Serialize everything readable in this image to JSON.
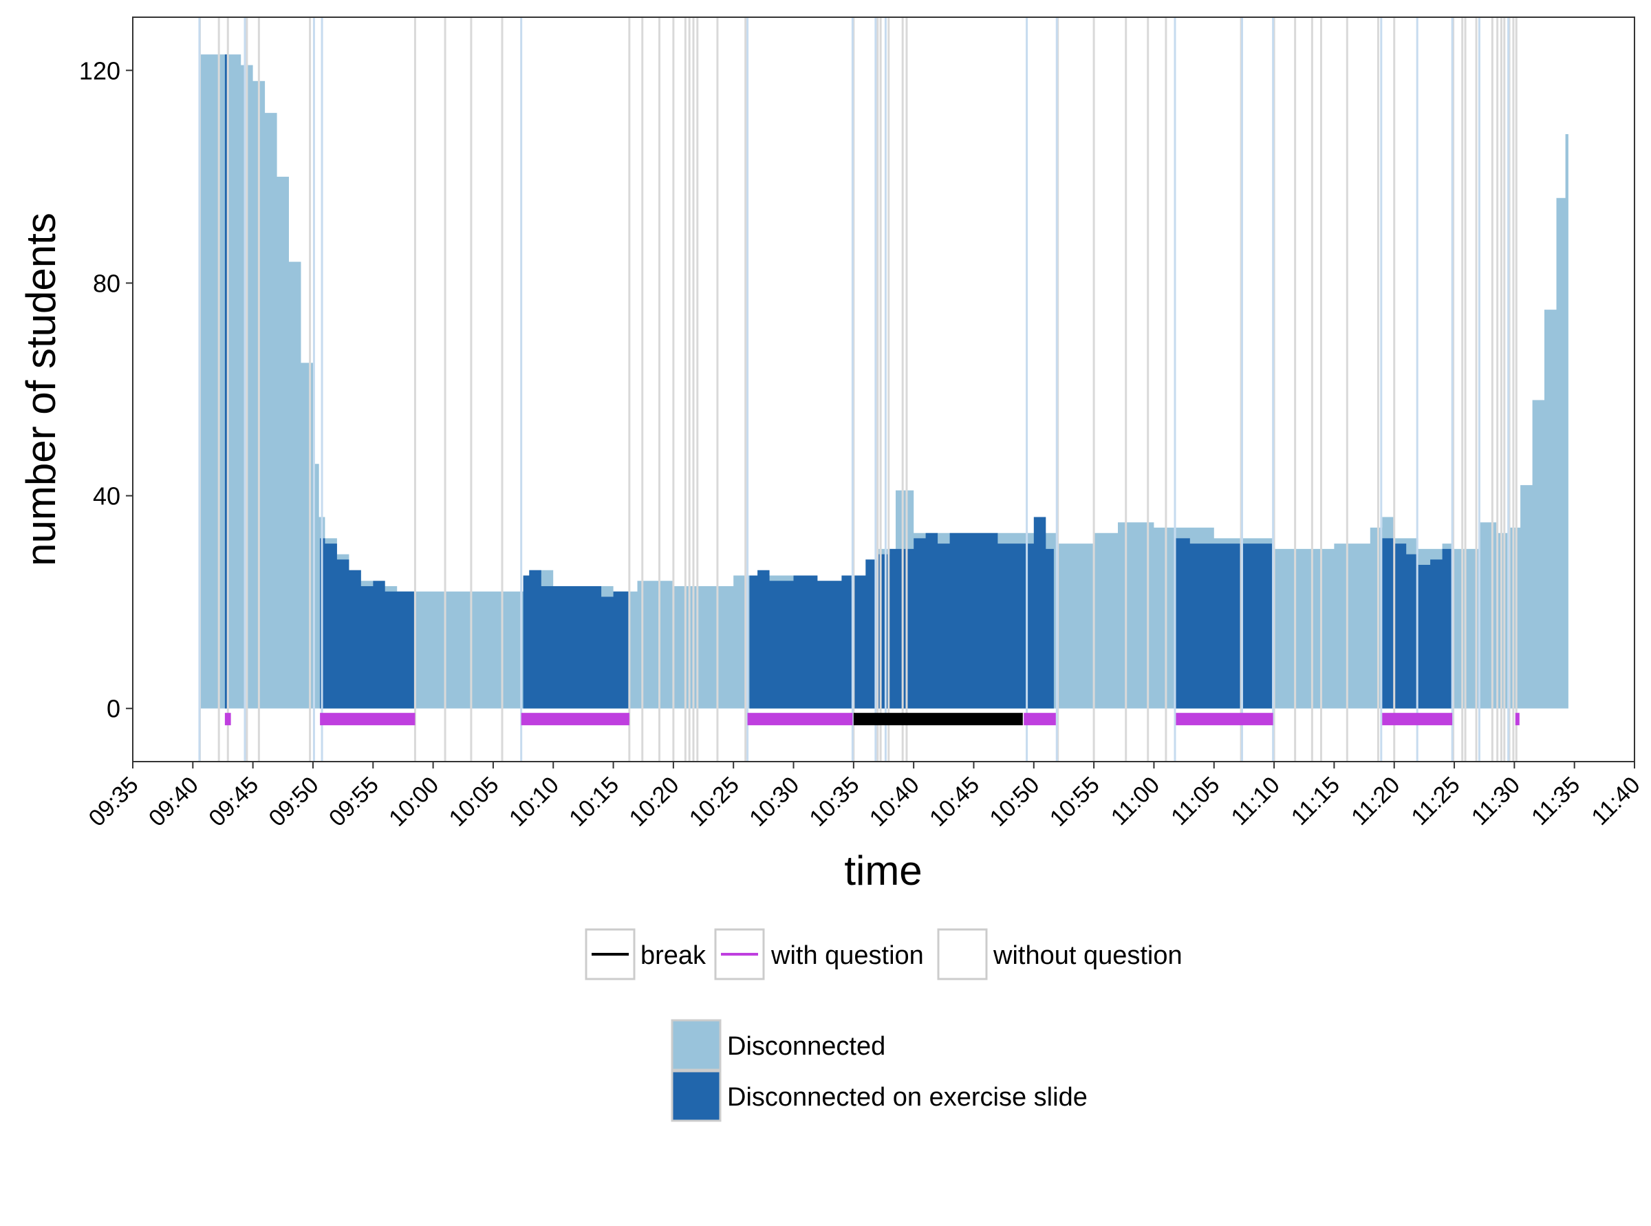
{
  "chart_data": {
    "type": "area",
    "xlabel": "time",
    "ylabel": "number of students",
    "ylim": [
      -10,
      130
    ],
    "y_ticks": [
      "0",
      "40",
      "80",
      "120"
    ],
    "y_tick_values": [
      0,
      40,
      80,
      120
    ],
    "x_range": [
      "09:35",
      "11:40"
    ],
    "x_ticks": [
      "09:35",
      "09:40",
      "09:45",
      "09:50",
      "09:55",
      "10:00",
      "10:05",
      "10:10",
      "10:15",
      "10:20",
      "10:25",
      "10:30",
      "10:35",
      "10:40",
      "10:45",
      "10:50",
      "10:55",
      "11:00",
      "11:05",
      "11:10",
      "11:15",
      "11:20",
      "11:25",
      "11:30",
      "11:35",
      "11:40"
    ],
    "grid": false,
    "series": [
      {
        "name": "Disconnected",
        "color": "#99C3DB",
        "points": [
          [
            "09:40:30",
            123
          ],
          [
            "09:43:00",
            123
          ],
          [
            "09:44:00",
            121
          ],
          [
            "09:45:00",
            118
          ],
          [
            "09:46:00",
            112
          ],
          [
            "09:47:00",
            100
          ],
          [
            "09:48:00",
            84
          ],
          [
            "09:49:00",
            65
          ],
          [
            "09:50:00",
            46
          ],
          [
            "09:50:30",
            36
          ],
          [
            "09:51:00",
            32
          ],
          [
            "09:52:00",
            29
          ],
          [
            "09:53:00",
            26
          ],
          [
            "09:54:00",
            24
          ],
          [
            "09:55:00",
            23
          ],
          [
            "09:57:00",
            22
          ],
          [
            "09:58:00",
            22
          ],
          [
            "10:00:00",
            22
          ],
          [
            "10:05:00",
            22
          ],
          [
            "10:08:00",
            26
          ],
          [
            "10:10:00",
            23
          ],
          [
            "10:15:00",
            22
          ],
          [
            "10:17:00",
            24
          ],
          [
            "10:20:00",
            23
          ],
          [
            "10:25:00",
            25
          ],
          [
            "10:30:00",
            24
          ],
          [
            "10:35:00",
            25
          ],
          [
            "10:37:00",
            30
          ],
          [
            "10:38:30",
            41
          ],
          [
            "10:40:00",
            33
          ],
          [
            "10:45:00",
            33
          ],
          [
            "10:50:00",
            33
          ],
          [
            "10:52:00",
            31
          ],
          [
            "10:55:00",
            33
          ],
          [
            "10:57:00",
            35
          ],
          [
            "11:00:00",
            34
          ],
          [
            "11:05:00",
            32
          ],
          [
            "11:10:00",
            30
          ],
          [
            "11:15:00",
            31
          ],
          [
            "11:18:00",
            34
          ],
          [
            "11:19:00",
            36
          ],
          [
            "11:20:00",
            32
          ],
          [
            "11:22:00",
            30
          ],
          [
            "11:24:00",
            31
          ],
          [
            "11:25:00",
            30
          ],
          [
            "11:27:00",
            35
          ],
          [
            "11:28:30",
            33
          ],
          [
            "11:29:30",
            34
          ],
          [
            "11:30:30",
            42
          ],
          [
            "11:31:30",
            58
          ],
          [
            "11:32:30",
            75
          ],
          [
            "11:33:30",
            96
          ],
          [
            "11:34:15",
            108
          ],
          [
            "11:34:30",
            108
          ]
        ]
      },
      {
        "name": "Disconnected on exercise slide",
        "color": "#2166AC",
        "segments": [
          {
            "start": "09:42:40",
            "end": "09:42:55",
            "points": [
              [
                "09:42:40",
                123
              ],
              [
                "09:42:55",
                123
              ]
            ]
          },
          {
            "start": "09:50:35",
            "end": "09:58:30",
            "points": [
              [
                "09:50:35",
                32
              ],
              [
                "09:51:00",
                31
              ],
              [
                "09:52:00",
                28
              ],
              [
                "09:53:00",
                26
              ],
              [
                "09:54:00",
                23
              ],
              [
                "09:55:00",
                24
              ],
              [
                "09:56:00",
                22
              ],
              [
                "09:57:00",
                22
              ],
              [
                "09:58:30",
                22
              ]
            ]
          },
          {
            "start": "10:07:30",
            "end": "10:16:20",
            "points": [
              [
                "10:07:30",
                25
              ],
              [
                "10:08:00",
                26
              ],
              [
                "10:09:00",
                23
              ],
              [
                "10:10:00",
                23
              ],
              [
                "10:12:00",
                23
              ],
              [
                "10:14:00",
                21
              ],
              [
                "10:15:00",
                22
              ],
              [
                "10:16:20",
                23
              ]
            ]
          },
          {
            "start": "10:26:20",
            "end": "10:34:50",
            "points": [
              [
                "10:26:20",
                25
              ],
              [
                "10:27:00",
                26
              ],
              [
                "10:28:00",
                24
              ],
              [
                "10:30:00",
                25
              ],
              [
                "10:32:00",
                24
              ],
              [
                "10:34:00",
                25
              ],
              [
                "10:34:50",
                24
              ]
            ]
          },
          {
            "start": "10:35:00",
            "end": "10:51:40",
            "points": [
              [
                "10:35:00",
                25
              ],
              [
                "10:36:00",
                28
              ],
              [
                "10:37:00",
                29
              ],
              [
                "10:38:00",
                30
              ],
              [
                "10:40:00",
                32
              ],
              [
                "10:41:00",
                33
              ],
              [
                "10:42:00",
                31
              ],
              [
                "10:43:00",
                33
              ],
              [
                "10:45:00",
                33
              ],
              [
                "10:47:00",
                31
              ],
              [
                "10:49:00",
                31
              ],
              [
                "10:50:00",
                36
              ],
              [
                "10:51:00",
                30
              ],
              [
                "10:51:40",
                27
              ]
            ]
          },
          {
            "start": "11:01:50",
            "end": "11:09:50",
            "points": [
              [
                "11:01:50",
                32
              ],
              [
                "11:03:00",
                31
              ],
              [
                "11:05:00",
                31
              ],
              [
                "11:07:00",
                31
              ],
              [
                "11:09:50",
                30
              ]
            ]
          },
          {
            "start": "11:19:00",
            "end": "11:24:50",
            "points": [
              [
                "11:19:00",
                32
              ],
              [
                "11:20:00",
                31
              ],
              [
                "11:21:00",
                29
              ],
              [
                "11:22:00",
                27
              ],
              [
                "11:23:00",
                28
              ],
              [
                "11:24:00",
                30
              ],
              [
                "11:24:50",
                30
              ]
            ]
          }
        ]
      }
    ],
    "slide_transitions": {
      "with_question_color": "#C6DBEF",
      "without_question_color": "#D9D9D9",
      "with_question": [
        "09:40:33",
        "09:44:20",
        "09:50:05",
        "09:50:45",
        "10:07:20",
        "10:26:10",
        "10:34:55",
        "10:36:50",
        "10:37:40",
        "10:49:25",
        "10:51:55",
        "11:01:45",
        "11:07:20",
        "11:09:55",
        "11:18:55",
        "11:21:55",
        "11:24:50",
        "11:27:05",
        "11:29:30"
      ],
      "without_question": [
        "09:40:35",
        "09:42:10",
        "09:42:55",
        "09:44:30",
        "09:45:30",
        "09:49:45",
        "09:58:30",
        "10:01:00",
        "10:03:10",
        "10:05:45",
        "10:16:20",
        "10:17:25",
        "10:18:50",
        "10:20:00",
        "10:21:00",
        "10:21:20",
        "10:21:40",
        "10:22:00",
        "10:23:40",
        "10:26:00",
        "10:35:00",
        "10:37:00",
        "10:37:15",
        "10:37:55",
        "10:39:05",
        "10:39:25",
        "10:52:00",
        "10:55:00",
        "10:57:40",
        "10:59:30",
        "11:01:00",
        "11:07:15",
        "11:10:00",
        "11:11:45",
        "11:13:10",
        "11:13:55",
        "11:16:05",
        "11:18:40",
        "11:20:00",
        "11:24:55",
        "11:25:40",
        "11:25:55",
        "11:26:50",
        "11:28:10",
        "11:28:35",
        "11:28:55",
        "11:29:10",
        "11:29:35",
        "11:29:55",
        "11:30:10"
      ]
    },
    "slide_phases": {
      "break_color": "#000000",
      "with_question_color": "#BF3FDF",
      "break": [
        [
          "10:35:00",
          "10:49:05"
        ]
      ],
      "with_question": [
        [
          "09:42:40",
          "09:43:10"
        ],
        [
          "09:50:35",
          "09:58:30"
        ],
        [
          "10:07:20",
          "10:16:20"
        ],
        [
          "10:26:10",
          "10:34:55"
        ],
        [
          "10:49:10",
          "10:51:50"
        ],
        [
          "11:01:50",
          "11:09:55"
        ],
        [
          "11:19:00",
          "11:24:50"
        ],
        [
          "11:30:05",
          "11:30:15"
        ]
      ]
    },
    "legend_lines": {
      "items": [
        {
          "label": "break",
          "color": "#000000"
        },
        {
          "label": "with question",
          "color": "#BF3FDF"
        },
        {
          "label": "without question",
          "color": ""
        }
      ]
    },
    "legend_fill": {
      "items": [
        {
          "label": "Disconnected",
          "color": "#99C3DB"
        },
        {
          "label": "Disconnected on exercise slide",
          "color": "#2166AC"
        }
      ]
    }
  }
}
